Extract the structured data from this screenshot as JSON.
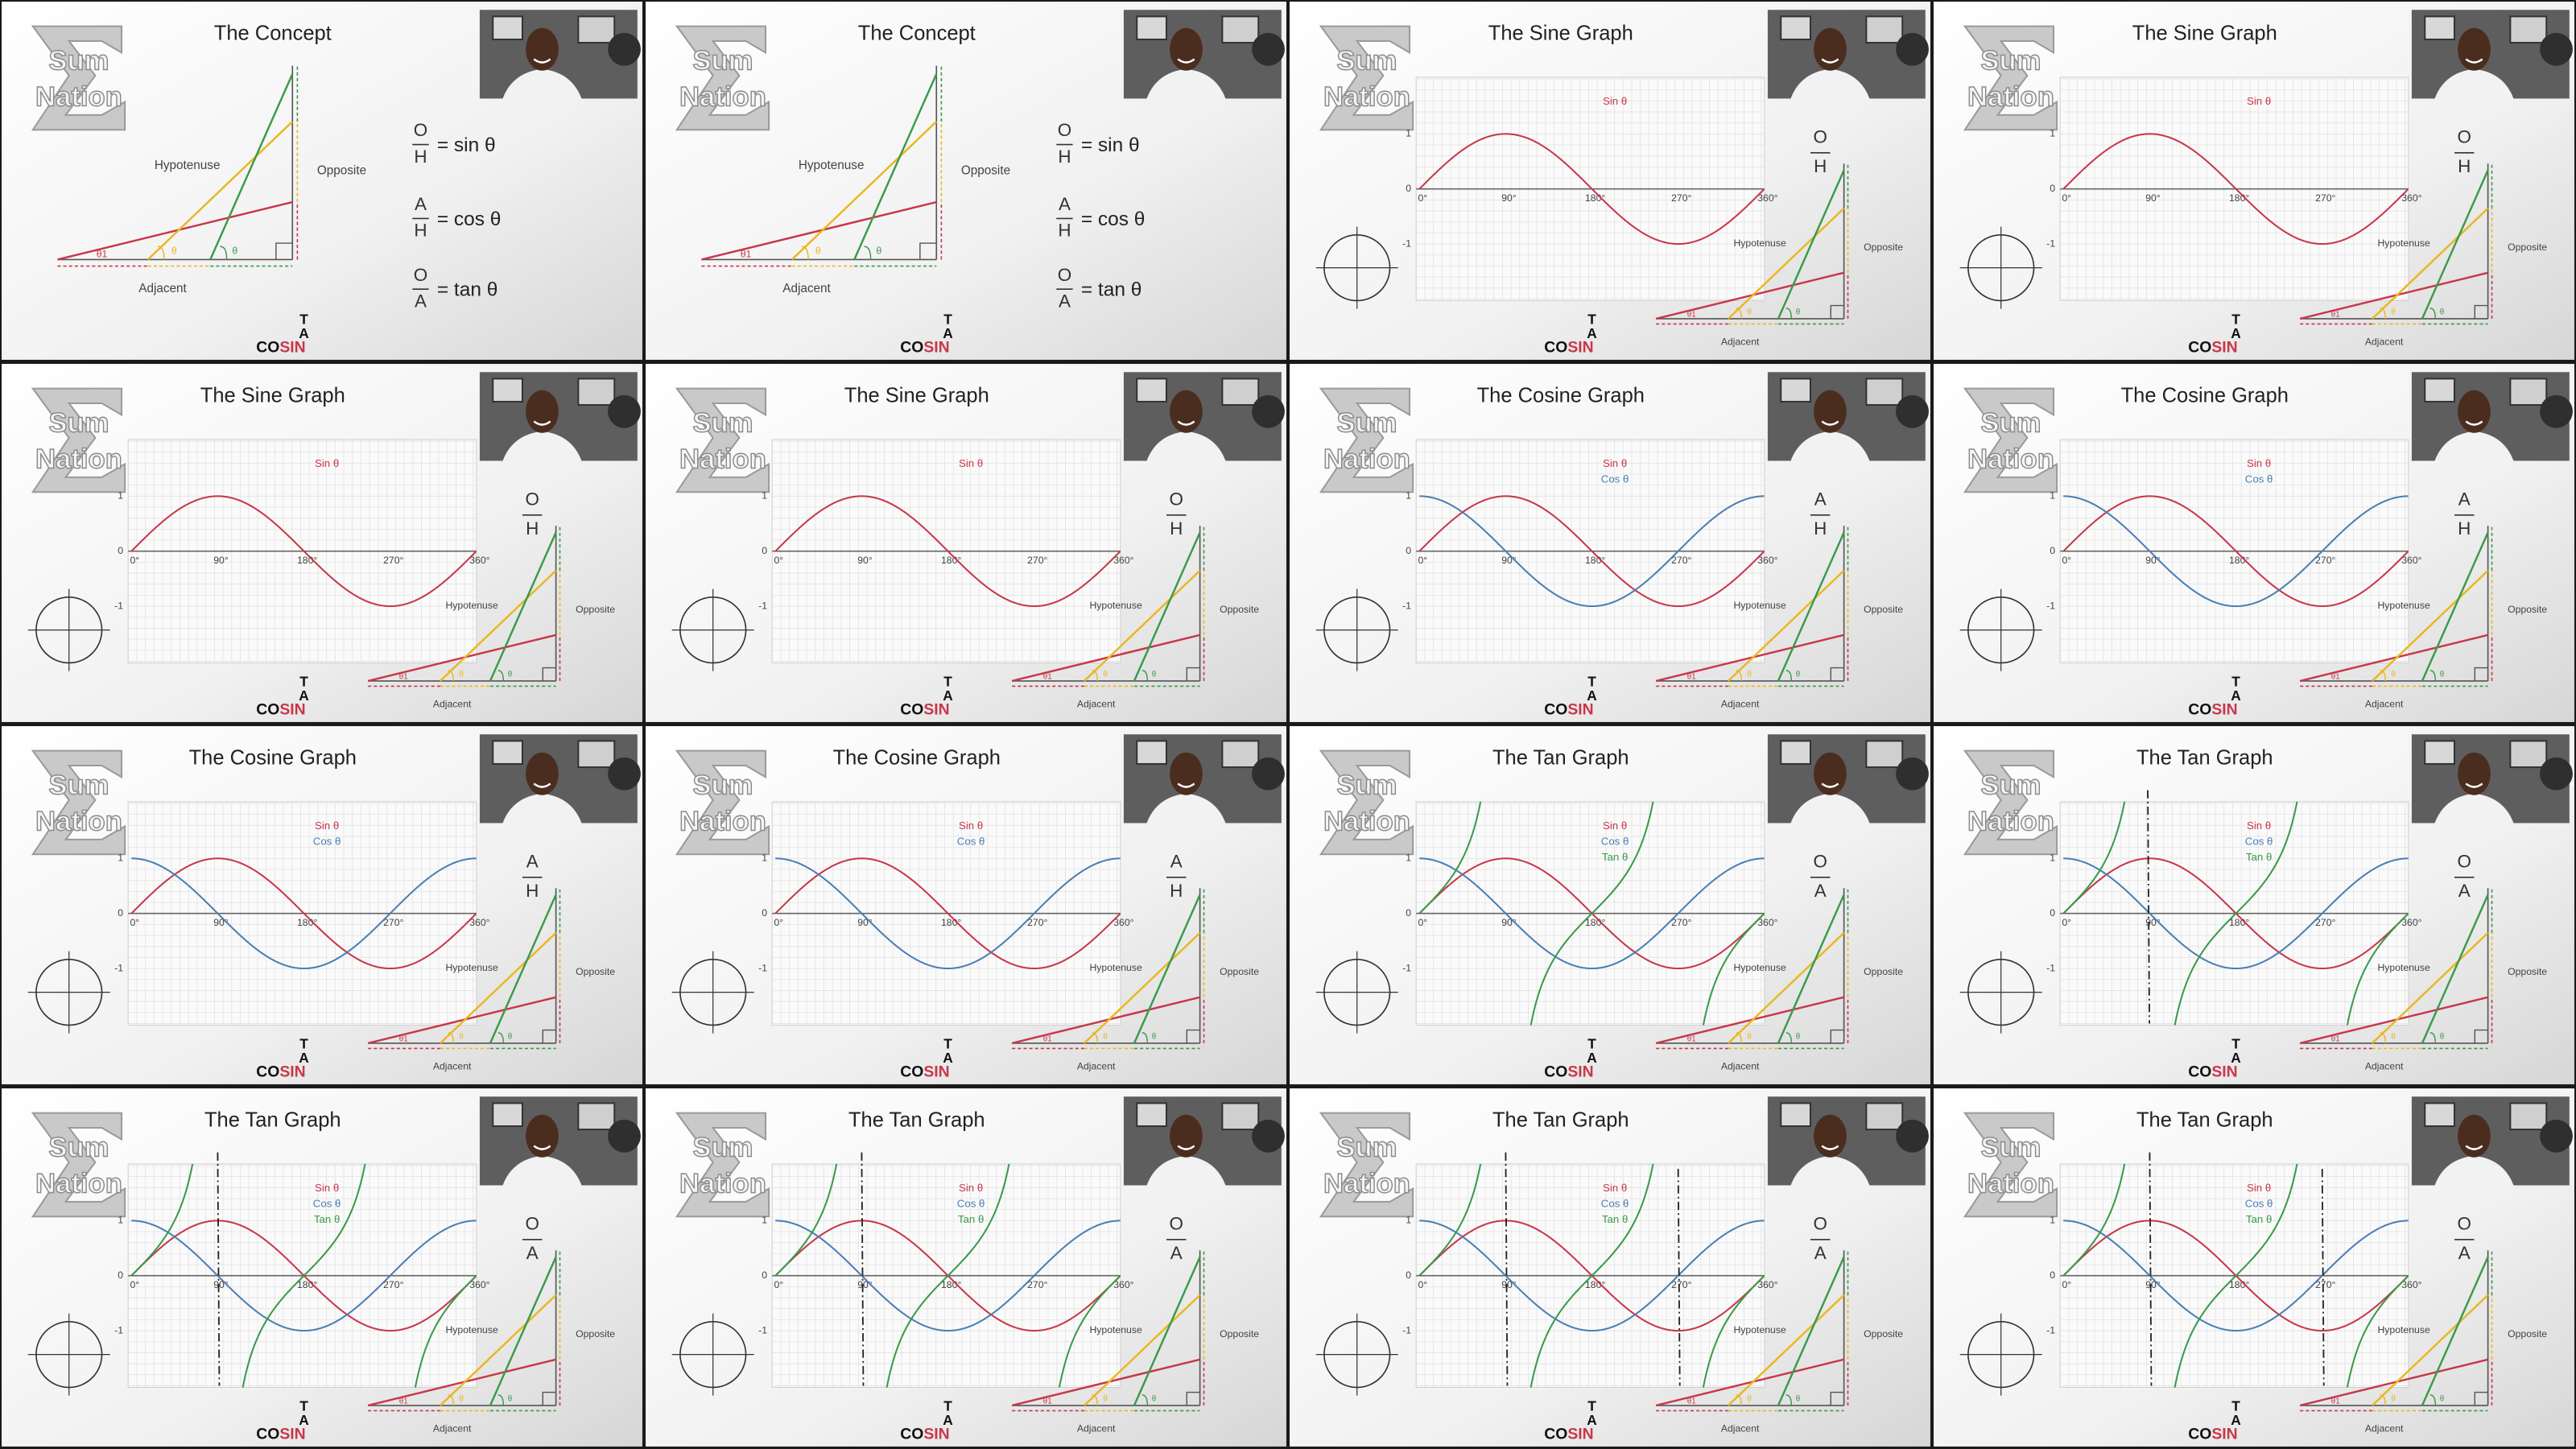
{
  "logo": [
    "Sum",
    "Nation"
  ],
  "acronym": {
    "t": "T",
    "a": "A",
    "co": "CO",
    "sin": "SIN"
  },
  "labels": {
    "hypotenuse": "Hypotenuse",
    "opposite": "Opposite",
    "adjacent": "Adjacent",
    "theta1": "θ1",
    "theta": "θ"
  },
  "formulas": [
    {
      "num": "O",
      "den": "H",
      "rhs": "= sin θ"
    },
    {
      "num": "A",
      "den": "H",
      "rhs": "= cos θ"
    },
    {
      "num": "O",
      "den": "A",
      "rhs": "= tan θ"
    }
  ],
  "graph": {
    "x_labels": [
      "0°",
      "90°",
      "180°",
      "270°",
      "360°"
    ],
    "y_labels": [
      1,
      0,
      -1
    ]
  },
  "panels": [
    {
      "type": "concept",
      "title": "The Concept"
    },
    {
      "type": "concept",
      "title": "The Concept"
    },
    {
      "type": "graph",
      "title": "The Sine Graph",
      "fraction": [
        "O",
        "H"
      ],
      "legend": [
        {
          "name": "Sin θ",
          "color": "#c8374a"
        }
      ]
    },
    {
      "type": "graph",
      "title": "The Sine Graph",
      "fraction": [
        "O",
        "H"
      ],
      "legend": [
        {
          "name": "Sin θ",
          "color": "#c8374a"
        }
      ]
    },
    {
      "type": "graph",
      "title": "The Sine Graph",
      "fraction": [
        "O",
        "H"
      ],
      "legend": [
        {
          "name": "Sin θ",
          "color": "#c8374a"
        }
      ]
    },
    {
      "type": "graph",
      "title": "The Sine Graph",
      "fraction": [
        "O",
        "H"
      ],
      "legend": [
        {
          "name": "Sin θ",
          "color": "#c8374a"
        }
      ]
    },
    {
      "type": "graph",
      "title": "The Cosine Graph",
      "fraction": [
        "A",
        "H"
      ],
      "legend": [
        {
          "name": "Sin θ",
          "color": "#c8374a"
        },
        {
          "name": "Cos θ",
          "color": "#4a7fb5"
        }
      ]
    },
    {
      "type": "graph",
      "title": "The Cosine Graph",
      "fraction": [
        "A",
        "H"
      ],
      "legend": [
        {
          "name": "Sin θ",
          "color": "#c8374a"
        },
        {
          "name": "Cos θ",
          "color": "#4a7fb5"
        }
      ]
    },
    {
      "type": "graph",
      "title": "The Cosine Graph",
      "fraction": [
        "A",
        "H"
      ],
      "legend": [
        {
          "name": "Sin θ",
          "color": "#c8374a"
        },
        {
          "name": "Cos θ",
          "color": "#4a7fb5"
        }
      ]
    },
    {
      "type": "graph",
      "title": "The Cosine Graph",
      "fraction": [
        "A",
        "H"
      ],
      "legend": [
        {
          "name": "Sin θ",
          "color": "#c8374a"
        },
        {
          "name": "Cos θ",
          "color": "#4a7fb5"
        }
      ]
    },
    {
      "type": "graph",
      "title": "The Tan Graph",
      "fraction": [
        "O",
        "A"
      ],
      "legend": [
        {
          "name": "Sin θ",
          "color": "#c8374a"
        },
        {
          "name": "Cos θ",
          "color": "#4a7fb5"
        },
        {
          "name": "Tan θ",
          "color": "#3a9a4a"
        }
      ]
    },
    {
      "type": "graph",
      "title": "The Tan Graph",
      "fraction": [
        "O",
        "A"
      ],
      "legend": [
        {
          "name": "Sin θ",
          "color": "#c8374a"
        },
        {
          "name": "Cos θ",
          "color": "#4a7fb5"
        },
        {
          "name": "Tan θ",
          "color": "#3a9a4a"
        }
      ]
    },
    {
      "type": "graph",
      "title": "The Tan Graph",
      "fraction": [
        "O",
        "A"
      ],
      "legend": [
        {
          "name": "Sin θ",
          "color": "#c8374a"
        },
        {
          "name": "Cos θ",
          "color": "#4a7fb5"
        },
        {
          "name": "Tan θ",
          "color": "#3a9a4a"
        }
      ]
    },
    {
      "type": "graph",
      "title": "The Tan Graph",
      "fraction": [
        "O",
        "A"
      ],
      "legend": [
        {
          "name": "Sin θ",
          "color": "#c8374a"
        },
        {
          "name": "Cos θ",
          "color": "#4a7fb5"
        },
        {
          "name": "Tan θ",
          "color": "#3a9a4a"
        }
      ]
    },
    {
      "type": "graph",
      "title": "The Tan Graph",
      "fraction": [
        "O",
        "A"
      ],
      "legend": [
        {
          "name": "Sin θ",
          "color": "#c8374a"
        },
        {
          "name": "Cos θ",
          "color": "#4a7fb5"
        },
        {
          "name": "Tan θ",
          "color": "#3a9a4a"
        }
      ]
    },
    {
      "type": "graph",
      "title": "The Tan Graph",
      "fraction": [
        "O",
        "A"
      ],
      "legend": [
        {
          "name": "Sin θ",
          "color": "#c8374a"
        },
        {
          "name": "Cos θ",
          "color": "#4a7fb5"
        },
        {
          "name": "Tan θ",
          "color": "#3a9a4a"
        }
      ]
    }
  ]
}
